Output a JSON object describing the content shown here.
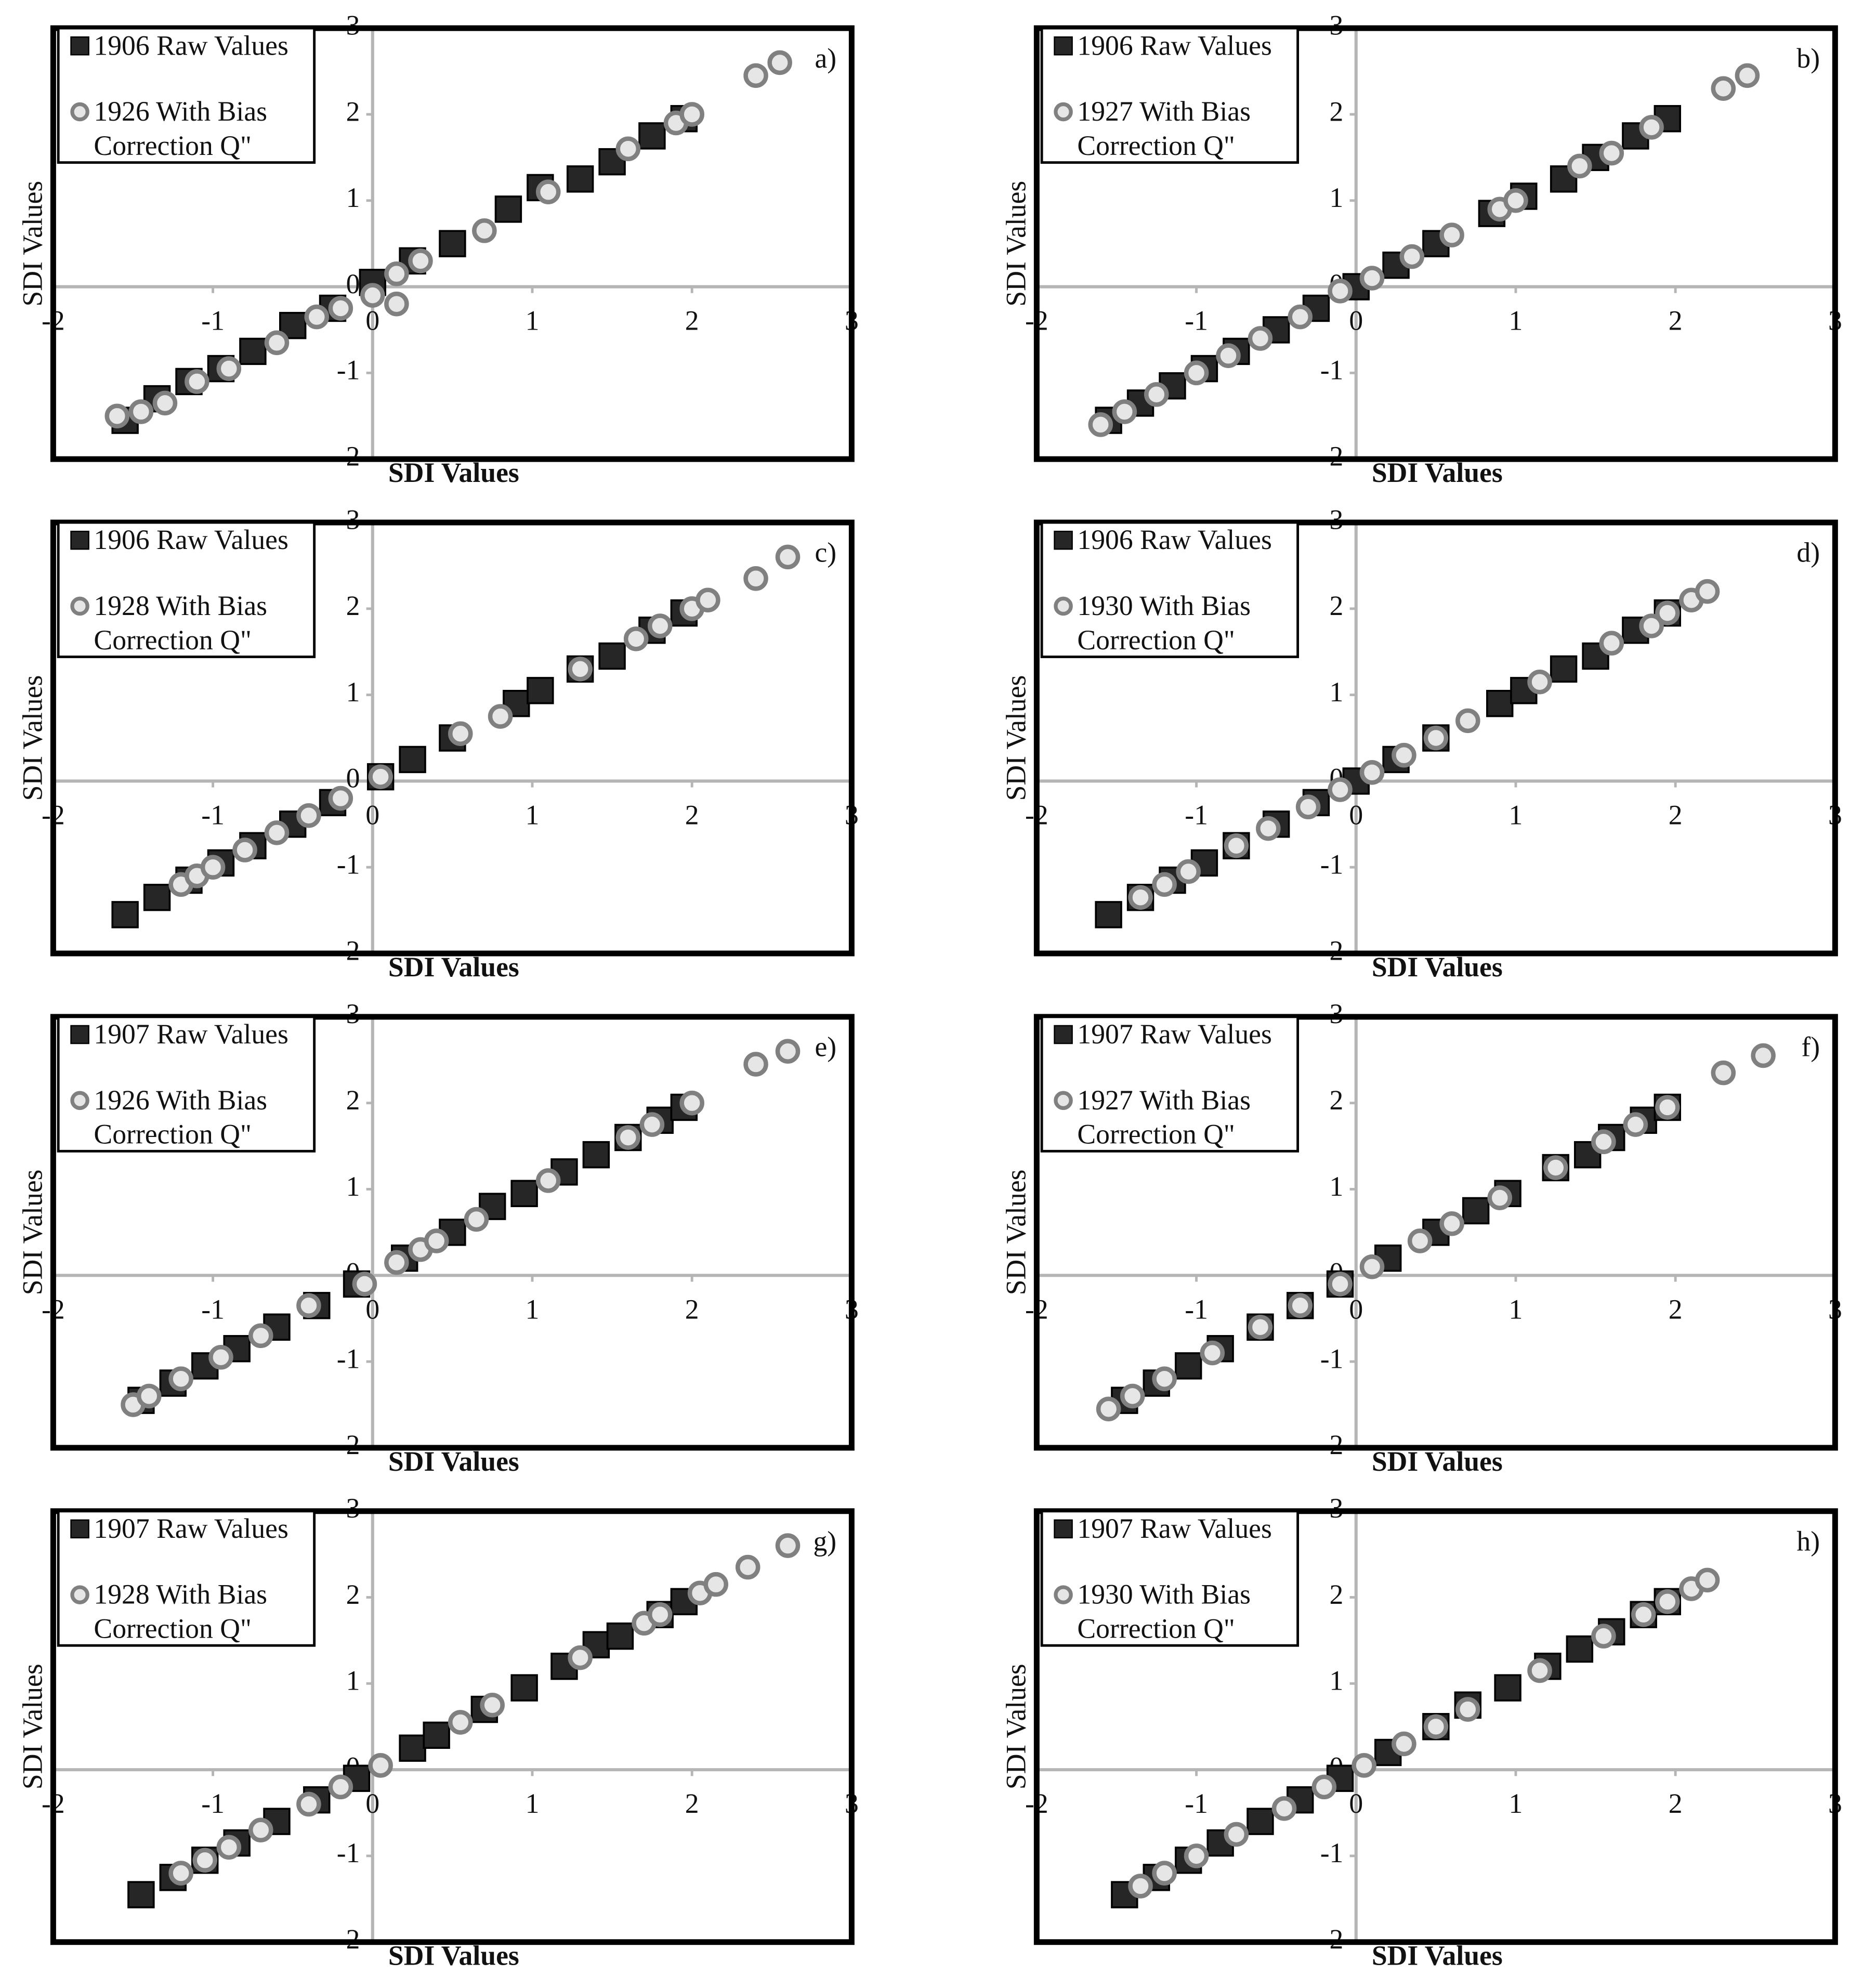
{
  "chart_data": [
    {
      "type": "scatter",
      "panel_label": "a)",
      "xlabel": "SDI Values",
      "ylabel": "SDI Values",
      "xlim": [
        -2,
        3
      ],
      "ylim": [
        -2,
        3
      ],
      "xticks": [
        -2,
        -1,
        0,
        1,
        2,
        3
      ],
      "yticks": [
        -2,
        -1,
        0,
        1,
        2,
        3
      ],
      "series": [
        {
          "name": "1906 Raw Values",
          "color": "#262626",
          "marker": "square",
          "x": [
            -1.55,
            -1.35,
            -1.15,
            -0.95,
            -0.75,
            -0.5,
            -0.25,
            0,
            0.25,
            0.5,
            0.85,
            1.05,
            1.3,
            1.5,
            1.75,
            1.95
          ],
          "values": [
            -1.55,
            -1.3,
            -1.1,
            -0.95,
            -0.75,
            -0.45,
            -0.25,
            0.05,
            0.3,
            0.5,
            0.9,
            1.15,
            1.25,
            1.45,
            1.75,
            1.95
          ]
        },
        {
          "name": "1926 With Bias Correction Q\"",
          "color": "#e6e6e6",
          "marker": "circle",
          "x": [
            -1.6,
            -1.45,
            -1.3,
            -1.1,
            -0.9,
            -0.6,
            -0.35,
            -0.2,
            0,
            0.15,
            0.15,
            0.3,
            0.7,
            1.1,
            1.6,
            1.9,
            2.0,
            2.4,
            2.55
          ],
          "values": [
            -1.5,
            -1.45,
            -1.35,
            -1.1,
            -0.95,
            -0.65,
            -0.35,
            -0.25,
            -0.1,
            0.15,
            -0.2,
            0.3,
            0.65,
            1.1,
            1.6,
            1.9,
            2.0,
            2.45,
            2.6
          ]
        }
      ]
    },
    {
      "type": "scatter",
      "panel_label": "b)",
      "xlabel": "SDI Values",
      "ylabel": "SDI Values",
      "xlim": [
        -2,
        3
      ],
      "ylim": [
        -2,
        3
      ],
      "xticks": [
        -2,
        -1,
        0,
        1,
        2,
        3
      ],
      "yticks": [
        -2,
        -1,
        0,
        1,
        2,
        3
      ],
      "series": [
        {
          "name": "1906 Raw Values",
          "color": "#262626",
          "marker": "square",
          "x": [
            -1.55,
            -1.35,
            -1.15,
            -0.95,
            -0.75,
            -0.5,
            -0.25,
            0,
            0.25,
            0.5,
            0.85,
            1.05,
            1.3,
            1.5,
            1.75,
            1.95
          ],
          "values": [
            -1.55,
            -1.35,
            -1.15,
            -0.95,
            -0.75,
            -0.5,
            -0.25,
            0,
            0.25,
            0.5,
            0.85,
            1.05,
            1.25,
            1.5,
            1.75,
            1.95
          ]
        },
        {
          "name": "1927 With Bias Correction Q\"",
          "color": "#e6e6e6",
          "marker": "circle",
          "x": [
            -1.6,
            -1.45,
            -1.25,
            -1.0,
            -0.8,
            -0.6,
            -0.35,
            -0.1,
            0.1,
            0.35,
            0.6,
            0.9,
            1.0,
            1.4,
            1.6,
            1.85,
            2.3,
            2.45
          ],
          "values": [
            -1.6,
            -1.45,
            -1.25,
            -1.0,
            -0.8,
            -0.6,
            -0.35,
            -0.05,
            0.1,
            0.35,
            0.6,
            0.9,
            1.0,
            1.4,
            1.55,
            1.85,
            2.3,
            2.45
          ]
        }
      ]
    },
    {
      "type": "scatter",
      "panel_label": "c)",
      "xlabel": "SDI Values",
      "ylabel": "SDI Values",
      "xlim": [
        -2,
        3
      ],
      "ylim": [
        -2,
        3
      ],
      "xticks": [
        -2,
        -1,
        0,
        1,
        2,
        3
      ],
      "yticks": [
        -2,
        -1,
        0,
        1,
        2,
        3
      ],
      "series": [
        {
          "name": "1906 Raw Values",
          "color": "#262626",
          "marker": "square",
          "x": [
            -1.55,
            -1.35,
            -1.15,
            -0.95,
            -0.75,
            -0.5,
            -0.25,
            0.05,
            0.25,
            0.5,
            0.9,
            1.05,
            1.3,
            1.5,
            1.75,
            1.95
          ],
          "values": [
            -1.55,
            -1.35,
            -1.15,
            -0.95,
            -0.75,
            -0.5,
            -0.25,
            0.05,
            0.25,
            0.5,
            0.9,
            1.05,
            1.3,
            1.45,
            1.75,
            1.95
          ]
        },
        {
          "name": "1928 With Bias Correction Q\"",
          "color": "#e6e6e6",
          "marker": "circle",
          "x": [
            -1.2,
            -1.1,
            -1.0,
            -0.8,
            -0.6,
            -0.4,
            -0.2,
            0.05,
            0.55,
            0.8,
            1.3,
            1.65,
            1.8,
            2.0,
            2.1,
            2.4,
            2.6
          ],
          "values": [
            -1.2,
            -1.1,
            -1.0,
            -0.8,
            -0.6,
            -0.4,
            -0.2,
            0.05,
            0.55,
            0.75,
            1.3,
            1.65,
            1.8,
            2.0,
            2.1,
            2.35,
            2.6
          ]
        }
      ]
    },
    {
      "type": "scatter",
      "panel_label": "d)",
      "xlabel": "SDI Values",
      "ylabel": "SDI Values",
      "xlim": [
        -2,
        3
      ],
      "ylim": [
        -2,
        3
      ],
      "xticks": [
        -2,
        -1,
        0,
        1,
        2,
        3
      ],
      "yticks": [
        -2,
        -1,
        0,
        1,
        2,
        3
      ],
      "series": [
        {
          "name": "1906 Raw Values",
          "color": "#262626",
          "marker": "square",
          "x": [
            -1.55,
            -1.35,
            -1.15,
            -0.95,
            -0.75,
            -0.5,
            -0.25,
            0,
            0.25,
            0.5,
            0.9,
            1.05,
            1.3,
            1.5,
            1.75,
            1.95
          ],
          "values": [
            -1.55,
            -1.35,
            -1.15,
            -0.95,
            -0.75,
            -0.5,
            -0.25,
            0,
            0.25,
            0.5,
            0.9,
            1.05,
            1.3,
            1.45,
            1.75,
            1.95
          ]
        },
        {
          "name": "1930 With Bias Correction Q\"",
          "color": "#e6e6e6",
          "marker": "circle",
          "x": [
            -1.35,
            -1.2,
            -1.05,
            -0.75,
            -0.55,
            -0.3,
            -0.1,
            0.1,
            0.3,
            0.5,
            0.7,
            1.15,
            1.6,
            1.85,
            1.95,
            2.1,
            2.2
          ],
          "values": [
            -1.35,
            -1.2,
            -1.05,
            -0.75,
            -0.55,
            -0.3,
            -0.1,
            0.1,
            0.3,
            0.5,
            0.7,
            1.15,
            1.6,
            1.8,
            1.95,
            2.1,
            2.2
          ]
        }
      ]
    },
    {
      "type": "scatter",
      "panel_label": "e)",
      "xlabel": "SDI Values",
      "ylabel": "SDI Values",
      "xlim": [
        -2,
        3
      ],
      "ylim": [
        -2,
        3
      ],
      "xticks": [
        -2,
        -1,
        0,
        1,
        2,
        3
      ],
      "yticks": [
        -2,
        -1,
        0,
        1,
        2,
        3
      ],
      "series": [
        {
          "name": "1907 Raw Values",
          "color": "#262626",
          "marker": "square",
          "x": [
            -1.45,
            -1.25,
            -1.05,
            -0.85,
            -0.6,
            -0.35,
            -0.1,
            0.2,
            0.5,
            0.75,
            0.95,
            1.2,
            1.4,
            1.6,
            1.8,
            1.95
          ],
          "values": [
            -1.45,
            -1.25,
            -1.05,
            -0.85,
            -0.6,
            -0.35,
            -0.1,
            0.2,
            0.5,
            0.8,
            0.95,
            1.2,
            1.4,
            1.6,
            1.8,
            1.95
          ]
        },
        {
          "name": "1926 With Bias Correction Q\"",
          "color": "#e6e6e6",
          "marker": "circle",
          "x": [
            -1.5,
            -1.4,
            -1.2,
            -0.95,
            -0.7,
            -0.4,
            -0.05,
            0.15,
            0.3,
            0.4,
            0.65,
            1.1,
            1.6,
            1.75,
            2.0,
            2.4,
            2.6
          ],
          "values": [
            -1.5,
            -1.4,
            -1.2,
            -0.95,
            -0.7,
            -0.35,
            -0.1,
            0.15,
            0.3,
            0.4,
            0.65,
            1.1,
            1.6,
            1.75,
            2.0,
            2.45,
            2.6
          ]
        }
      ]
    },
    {
      "type": "scatter",
      "panel_label": "f)",
      "xlabel": "SDI Values",
      "ylabel": "SDI Values",
      "xlim": [
        -2,
        3
      ],
      "ylim": [
        -2,
        3
      ],
      "xticks": [
        -2,
        -1,
        0,
        1,
        2,
        3
      ],
      "yticks": [
        -2,
        -1,
        0,
        1,
        2,
        3
      ],
      "series": [
        {
          "name": "1907 Raw Values",
          "color": "#262626",
          "marker": "square",
          "x": [
            -1.45,
            -1.25,
            -1.05,
            -0.85,
            -0.6,
            -0.35,
            -0.1,
            0.2,
            0.5,
            0.75,
            0.95,
            1.25,
            1.45,
            1.6,
            1.8,
            1.95
          ],
          "values": [
            -1.45,
            -1.25,
            -1.05,
            -0.85,
            -0.6,
            -0.35,
            -0.1,
            0.2,
            0.5,
            0.75,
            0.95,
            1.25,
            1.4,
            1.6,
            1.8,
            1.95
          ]
        },
        {
          "name": "1927 With Bias Correction Q\"",
          "color": "#e6e6e6",
          "marker": "circle",
          "x": [
            -1.55,
            -1.4,
            -1.2,
            -0.9,
            -0.6,
            -0.35,
            -0.1,
            0.1,
            0.4,
            0.6,
            0.9,
            1.25,
            1.55,
            1.75,
            1.95,
            2.3,
            2.55
          ],
          "values": [
            -1.55,
            -1.4,
            -1.2,
            -0.9,
            -0.6,
            -0.35,
            -0.1,
            0.1,
            0.4,
            0.6,
            0.9,
            1.25,
            1.55,
            1.75,
            1.95,
            2.35,
            2.55
          ]
        }
      ]
    },
    {
      "type": "scatter",
      "panel_label": "g)",
      "xlabel": "SDI Values",
      "ylabel": "SDI Values",
      "xlim": [
        -2,
        3
      ],
      "ylim": [
        -2,
        3
      ],
      "xticks": [
        -2,
        -1,
        0,
        1,
        2,
        3
      ],
      "yticks": [
        -2,
        -1,
        0,
        1,
        2,
        3
      ],
      "series": [
        {
          "name": "1907 Raw Values",
          "color": "#262626",
          "marker": "square",
          "x": [
            -1.45,
            -1.25,
            -1.05,
            -0.85,
            -0.6,
            -0.35,
            -0.1,
            0.25,
            0.4,
            0.7,
            0.95,
            1.2,
            1.4,
            1.55,
            1.8,
            1.95
          ],
          "values": [
            -1.45,
            -1.25,
            -1.05,
            -0.85,
            -0.6,
            -0.35,
            -0.1,
            0.25,
            0.4,
            0.7,
            0.95,
            1.2,
            1.45,
            1.55,
            1.8,
            1.95
          ]
        },
        {
          "name": "1928 With Bias Correction Q\"",
          "color": "#e6e6e6",
          "marker": "circle",
          "x": [
            -1.2,
            -1.05,
            -0.9,
            -0.7,
            -0.4,
            -0.2,
            0.05,
            0.55,
            0.75,
            1.3,
            1.7,
            1.8,
            2.05,
            2.15,
            2.35,
            2.6
          ],
          "values": [
            -1.2,
            -1.05,
            -0.9,
            -0.7,
            -0.4,
            -0.2,
            0.05,
            0.55,
            0.75,
            1.3,
            1.7,
            1.8,
            2.05,
            2.15,
            2.35,
            2.6
          ]
        }
      ]
    },
    {
      "type": "scatter",
      "panel_label": "h)",
      "xlabel": "SDI Values",
      "ylabel": "SDI Values",
      "xlim": [
        -2,
        3
      ],
      "ylim": [
        -2,
        3
      ],
      "xticks": [
        -2,
        -1,
        0,
        1,
        2,
        3
      ],
      "yticks": [
        -2,
        -1,
        0,
        1,
        2,
        3
      ],
      "series": [
        {
          "name": "1907 Raw Values",
          "color": "#262626",
          "marker": "square",
          "x": [
            -1.45,
            -1.25,
            -1.05,
            -0.85,
            -0.6,
            -0.35,
            -0.1,
            0.2,
            0.5,
            0.7,
            0.95,
            1.2,
            1.4,
            1.6,
            1.8,
            1.95
          ],
          "values": [
            -1.45,
            -1.25,
            -1.05,
            -0.85,
            -0.6,
            -0.35,
            -0.1,
            0.2,
            0.5,
            0.75,
            0.95,
            1.2,
            1.4,
            1.6,
            1.8,
            1.95
          ]
        },
        {
          "name": "1930 With Bias Correction Q\"",
          "color": "#e6e6e6",
          "marker": "circle",
          "x": [
            -1.35,
            -1.2,
            -1.0,
            -0.75,
            -0.45,
            -0.2,
            0.05,
            0.3,
            0.5,
            0.7,
            1.15,
            1.55,
            1.8,
            1.95,
            2.1,
            2.2
          ],
          "values": [
            -1.35,
            -1.2,
            -1.0,
            -0.75,
            -0.45,
            -0.2,
            0.05,
            0.3,
            0.5,
            0.7,
            1.15,
            1.55,
            1.8,
            1.95,
            2.1,
            2.2
          ]
        }
      ]
    }
  ]
}
